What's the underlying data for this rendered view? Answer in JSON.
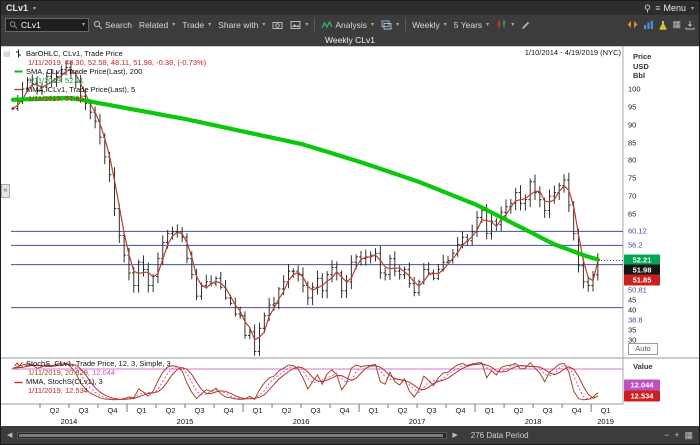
{
  "titlebar": {
    "ticker": "CLv1",
    "menu_label": "Menu"
  },
  "toolbar": {
    "search_value": "CLv1",
    "search_label": "Search",
    "related_label": "Related",
    "trade_label": "Trade",
    "share_label": "Share with",
    "analysis_label": "Analysis",
    "interval_label": "Weekly",
    "range_label": "5 Years"
  },
  "header": {
    "title": "Weekly CLv1",
    "date_range": "1/10/2014 - 4/19/2019 (NYC)"
  },
  "legend_main": {
    "row1_label": "BarOHLC, CLv1, Trade Price",
    "row1_values": "1/11/2019, 48.30, 52.58, 48.11, 51.98, -0.38, (-0.73%)",
    "row2_label": "SMA, CLv1, Trade Price(Last), 200",
    "row2_values": "1/11/2019, 52.21",
    "row3_label": "MMA, CLv1, Trade Price(Last), 5",
    "row3_values": "1/11/2019, 51.85"
  },
  "legend_stoch": {
    "row1_label": "StochS, CLv1, Trade Price, 12, 3, Simple, 3",
    "row1_values_a": "1/11/2019, 20.829,",
    "row1_values_b": "12.044",
    "row2_label": "MMA, StochS(CLv1), 3",
    "row2_values": "1/11/2019, 12.534"
  },
  "price_axis": {
    "header": [
      "Price",
      "USD",
      "Bbl"
    ],
    "ticks": [
      100,
      95,
      90,
      85,
      80,
      75,
      70,
      65,
      45,
      40,
      35,
      30
    ],
    "levels": [
      {
        "value": 60.12,
        "label": "60.12"
      },
      {
        "value": 56.2,
        "label": "56.2"
      },
      {
        "value": 50.81,
        "label": "50.81"
      },
      {
        "value": 38.8,
        "label": "38.8"
      }
    ],
    "badges": [
      {
        "value": 52.21,
        "label": "52.21",
        "bg": "#00a651"
      },
      {
        "value": 51.98,
        "label": "51.98",
        "bg": "#151515"
      },
      {
        "value": 51.85,
        "label": "51.85",
        "bg": "#cc2020"
      }
    ],
    "auto_label": "Auto"
  },
  "stoch_axis": {
    "header": "Value",
    "badges": [
      {
        "value": 12.044,
        "label": "12.044",
        "bg": "#c050c0"
      },
      {
        "value": 12.534,
        "label": "12.534",
        "bg": "#cc2020"
      }
    ]
  },
  "x_axis": {
    "quarters": [
      {
        "label": "Q2",
        "m": 4.5
      },
      {
        "label": "Q3",
        "m": 7.5
      },
      {
        "label": "Q4",
        "m": 10.5
      },
      {
        "label": "Q1",
        "m": 13.5
      },
      {
        "label": "Q2",
        "m": 16.5
      },
      {
        "label": "Q3",
        "m": 19.5
      },
      {
        "label": "Q4",
        "m": 22.5
      },
      {
        "label": "Q1",
        "m": 25.5
      },
      {
        "label": "Q2",
        "m": 28.5
      },
      {
        "label": "Q3",
        "m": 31.5
      },
      {
        "label": "Q4",
        "m": 34.5
      },
      {
        "label": "Q1",
        "m": 37.5
      },
      {
        "label": "Q2",
        "m": 40.5
      },
      {
        "label": "Q3",
        "m": 43.5
      },
      {
        "label": "Q4",
        "m": 46.5
      },
      {
        "label": "Q1",
        "m": 49.5
      },
      {
        "label": "Q2",
        "m": 52.5
      },
      {
        "label": "Q3",
        "m": 55.5
      },
      {
        "label": "Q4",
        "m": 58.5
      },
      {
        "label": "Q1",
        "m": 61.5
      }
    ],
    "years": [
      {
        "label": "2014",
        "m": 6
      },
      {
        "label": "2015",
        "m": 18
      },
      {
        "label": "2016",
        "m": 30
      },
      {
        "label": "2017",
        "m": 42
      },
      {
        "label": "2018",
        "m": 54
      },
      {
        "label": "2019",
        "m": 61.5
      }
    ]
  },
  "bottom_bar": {
    "data_period_label": "276 Data Period"
  },
  "icons": {
    "caret": "▾",
    "hamburger": "≡",
    "collapse": "«",
    "pane": "▤",
    "arrow_left": "◀",
    "arrow_right": "▶",
    "plus": "+",
    "minus": "−",
    "grid": "▦"
  },
  "colors": {
    "sma": "#00c400",
    "mma": "#b8402a",
    "bars": "#1a1a1a",
    "level_line": "#4053a3",
    "level_text": "#3a4a9e",
    "stoch_k": "#a04a28",
    "stoch_d": "#cc55cc",
    "stoch_m": "#c03028",
    "neg": "#cc2222",
    "pos": "#00a651"
  },
  "chart_data": {
    "type": "candlestick",
    "title": "Weekly CLv1",
    "symbol": "CLv1",
    "interval": "Weekly",
    "x_start": "2014-01",
    "x_end": "2019-04",
    "ylim": [
      25,
      108
    ],
    "levels": [
      60.12,
      56.2,
      50.81,
      38.8
    ],
    "last_bar": {
      "date": "1/11/2019",
      "open": 48.3,
      "high": 52.58,
      "low": 48.11,
      "close": 51.98,
      "change": -0.38,
      "change_pct": -0.73
    },
    "sma200_last": 52.21,
    "mma5_last": 51.85,
    "stoch_last": {
      "k": 20.829,
      "d": 12.044,
      "mma3": 12.534
    },
    "stoch_ylim": [
      0,
      100
    ],
    "stoch_level": 80,
    "series": {
      "closes_biweekly": [
        94.5,
        96.5,
        100,
        102.5,
        101.5,
        99.5,
        100.5,
        103.5,
        102,
        103.5,
        105.5,
        106,
        104.5,
        102,
        98,
        96,
        93.5,
        91,
        86.5,
        81,
        76,
        66.5,
        59,
        53.5,
        48.5,
        45,
        51.5,
        49.5,
        45,
        47.5,
        52.5,
        57,
        59.5,
        60,
        60,
        58.5,
        52.5,
        48,
        42,
        45,
        46,
        45.5,
        47,
        44.5,
        41.5,
        40,
        37,
        36.5,
        31,
        32,
        26.5,
        33,
        36.5,
        39.5,
        40,
        44,
        46,
        49,
        49,
        48,
        45,
        41.5,
        44.5,
        47,
        43.5,
        48,
        50,
        48.5,
        43.5,
        46,
        51.5,
        53,
        52.5,
        53,
        53.5,
        54,
        48.5,
        48,
        52.5,
        49,
        48,
        49.5,
        45.5,
        43,
        46,
        49.5,
        48.5,
        47,
        49.5,
        51.5,
        52,
        54,
        56.5,
        58.5,
        57.5,
        60,
        64,
        66,
        59.5,
        63,
        62,
        65.5,
        67,
        68,
        71,
        68,
        69,
        74,
        71,
        69,
        66,
        70,
        71,
        73,
        74.5,
        67.5,
        59.5,
        50.5,
        46,
        45,
        48,
        51.98
      ],
      "sma200_anchors": [
        [
          0,
          97
        ],
        [
          12,
          97.5
        ],
        [
          24,
          94.5
        ],
        [
          36,
          91.5
        ],
        [
          48,
          88
        ],
        [
          60,
          84.5
        ],
        [
          72,
          79.5
        ],
        [
          84,
          74
        ],
        [
          96,
          67.5
        ],
        [
          104,
          62
        ],
        [
          112,
          56.5
        ],
        [
          118,
          53.5
        ],
        [
          121,
          52.21
        ]
      ],
      "stoch_k_biweekly": [
        82,
        86,
        90,
        93,
        90,
        82,
        85,
        91,
        88,
        92,
        95,
        94,
        85,
        70,
        45,
        30,
        20,
        14,
        8,
        5,
        4,
        3,
        4,
        6,
        10,
        8,
        30,
        22,
        12,
        25,
        50,
        72,
        85,
        88,
        86,
        75,
        45,
        22,
        6,
        18,
        28,
        24,
        32,
        18,
        10,
        8,
        5,
        4,
        5,
        12,
        4,
        28,
        45,
        58,
        62,
        75,
        82,
        90,
        88,
        80,
        58,
        30,
        48,
        65,
        42,
        68,
        78,
        65,
        28,
        45,
        82,
        90,
        86,
        88,
        89,
        91,
        48,
        42,
        72,
        48,
        40,
        55,
        25,
        10,
        28,
        62,
        52,
        38,
        58,
        70,
        72,
        82,
        90,
        94,
        88,
        93,
        95,
        96,
        58,
        76,
        65,
        84,
        88,
        90,
        94,
        80,
        82,
        96,
        82,
        70,
        48,
        72,
        82,
        92,
        94,
        72,
        25,
        6,
        3,
        4,
        10,
        20.8
      ]
    }
  }
}
